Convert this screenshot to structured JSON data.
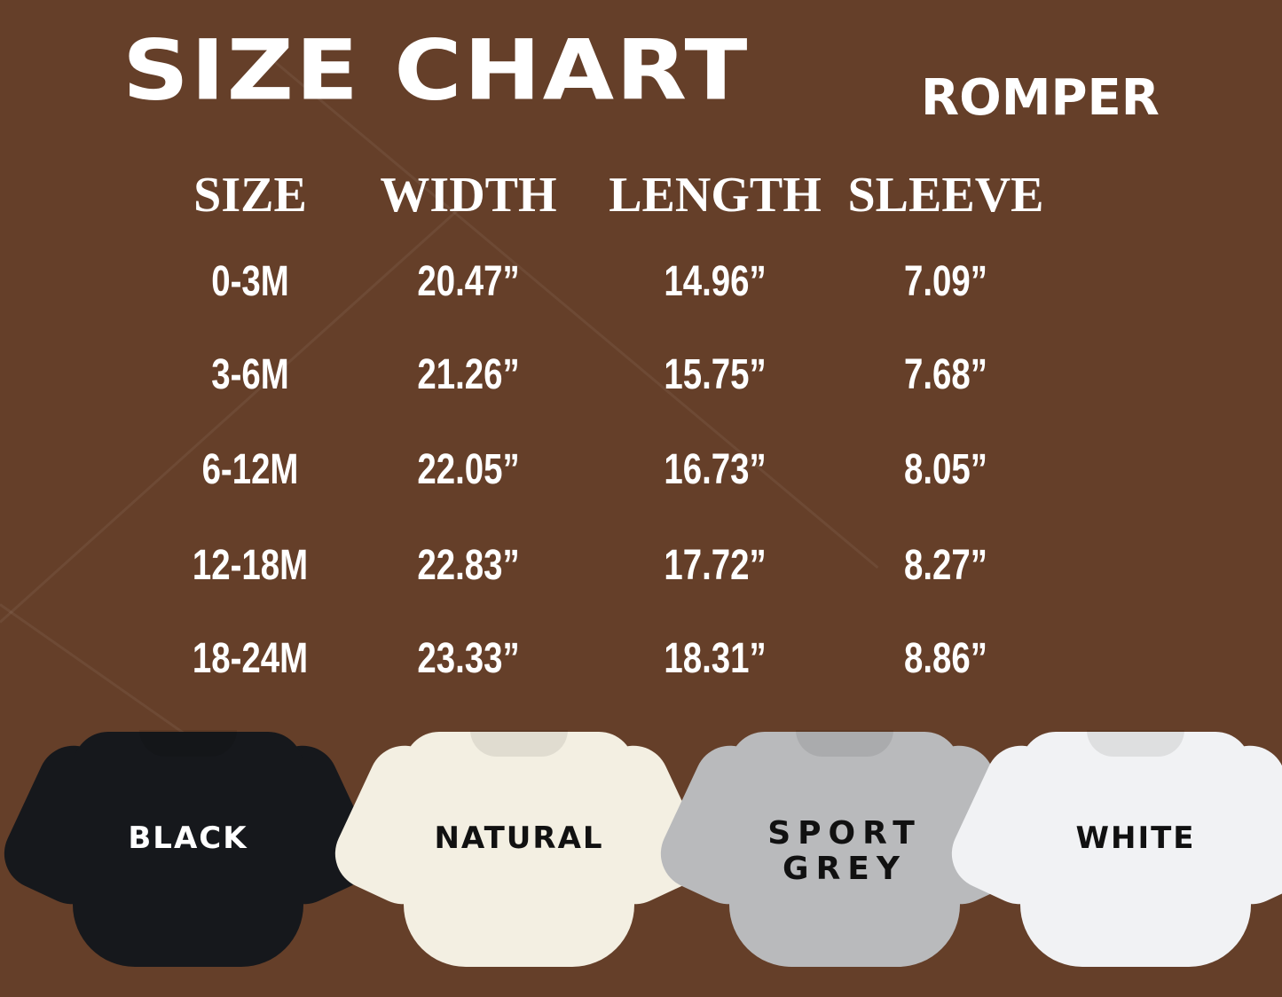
{
  "title": "SIZE CHART",
  "subtitle": "ROMPER",
  "colors": {
    "background": "#653f29",
    "text": "#ffffff"
  },
  "table": {
    "headers": [
      "SIZE",
      "WIDTH",
      "LENGTH",
      "SLEEVE"
    ],
    "rows": [
      [
        "0-3M",
        "20.47”",
        "14.96”",
        "7.09”"
      ],
      [
        "3-6M",
        "21.26”",
        "15.75”",
        "7.68”"
      ],
      [
        "6-12M",
        "22.05”",
        "16.73”",
        "8.05”"
      ],
      [
        "12-18M",
        "22.83”",
        "17.72”",
        "8.27”"
      ],
      [
        "18-24M",
        "23.33”",
        "18.31”",
        "8.86”"
      ]
    ]
  },
  "colors_available": [
    {
      "label": "BLACK",
      "fabric": "#16181c",
      "text": "#ffffff"
    },
    {
      "label": "NATURAL",
      "fabric": "#f3efe2",
      "text": "#111111"
    },
    {
      "label": "SPORT GREY",
      "fabric": "#b9babc",
      "text": "#111111"
    },
    {
      "label": "WHITE",
      "fabric": "#f1f2f4",
      "text": "#111111"
    }
  ]
}
